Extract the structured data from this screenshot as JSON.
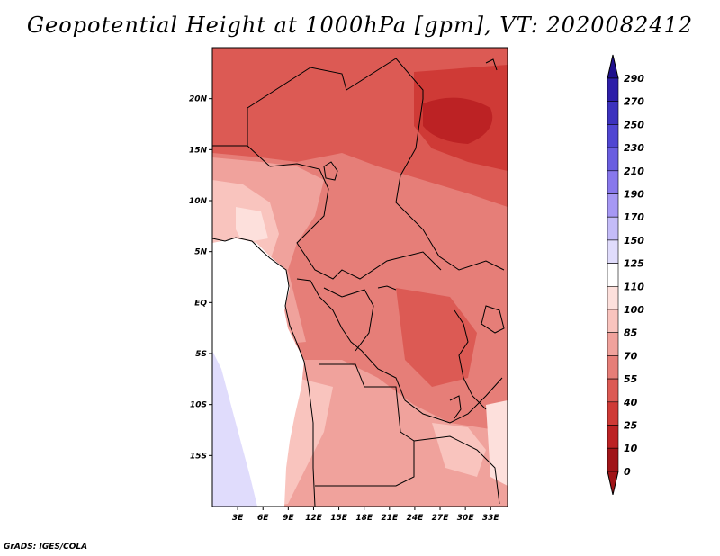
{
  "title": "Geopotential Height at 1000hPa [gpm], VT: 2020082412",
  "map": {
    "lat_ticks": [
      "20N",
      "15N",
      "10N",
      "5N",
      "EQ",
      "5S",
      "10S",
      "15S"
    ],
    "lon_ticks": [
      "3E",
      "6E",
      "9E",
      "12E",
      "15E",
      "18E",
      "21E",
      "24E",
      "27E",
      "30E",
      "33E"
    ],
    "extent": {
      "lon_min": 0,
      "lon_max": 35,
      "lat_min": -20,
      "lat_max": 25
    }
  },
  "colorbar": {
    "levels": [
      "290",
      "270",
      "250",
      "230",
      "210",
      "190",
      "170",
      "150",
      "125",
      "110",
      "100",
      "85",
      "70",
      "55",
      "40",
      "25",
      "10",
      "0"
    ],
    "colors": [
      "#1e0f8c",
      "#2d1ea8",
      "#3c32be",
      "#5046d2",
      "#6a5ee0",
      "#8878ec",
      "#a698f4",
      "#c4bcf8",
      "#e0dcfc",
      "#ffffff",
      "#fde0dc",
      "#f9c4be",
      "#f0a29c",
      "#e67e78",
      "#dc5a54",
      "#cf3a36",
      "#bc2224",
      "#a01418"
    ]
  },
  "footer": {
    "credit": "GrADS: IGES/COLA"
  }
}
